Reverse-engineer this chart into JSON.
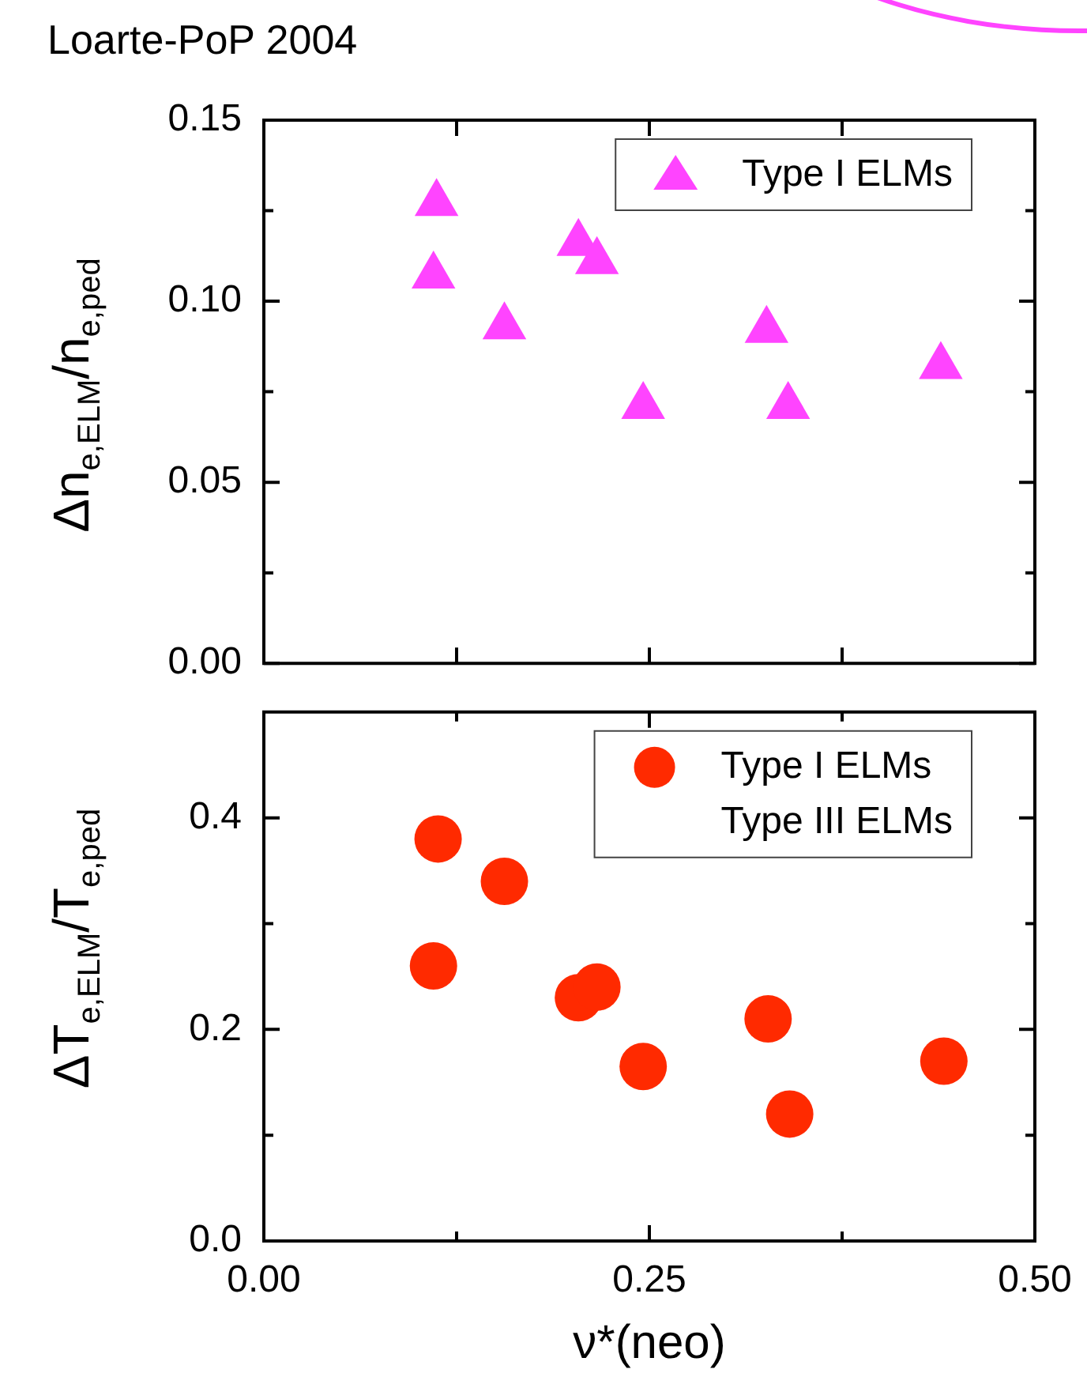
{
  "chart_data": [
    {
      "type": "scatter",
      "title": "Loarte-PoP 2004",
      "ylabel": "Δn$_{e,ELM}$/n$_{e,ped}$",
      "xlim": [
        0,
        0.5
      ],
      "xticks": [
        {
          "value": 0,
          "label": null
        },
        {
          "value": 0.125,
          "label": null
        },
        {
          "value": 0.25,
          "label": null
        },
        {
          "value": 0.375,
          "label": null
        },
        {
          "value": 0.5,
          "label": null
        }
      ],
      "ylim": [
        0,
        0.15
      ],
      "yticks": [
        {
          "value": 0,
          "label": "0.00"
        },
        {
          "value": 0.025,
          "label": null
        },
        {
          "value": 0.05,
          "label": "0.05"
        },
        {
          "value": 0.075,
          "label": null
        },
        {
          "value": 0.1,
          "label": "0.10"
        },
        {
          "value": 0.125,
          "label": null
        },
        {
          "value": 0.15,
          "label": "0.15"
        }
      ],
      "tick_labels": "y",
      "legend": "top right",
      "marker": "triangle",
      "series": [
        {
          "name": "Type I ELMs",
          "color": "#ff44ff",
          "x": [
            0.112,
            0.11,
            0.156,
            0.204,
            0.216,
            0.246,
            0.326,
            0.34,
            0.439
          ],
          "values": [
            0.127,
            0.107,
            0.093,
            0.116,
            0.111,
            0.071,
            0.092,
            0.071,
            0.082
          ]
        }
      ]
    },
    {
      "type": "scatter",
      "xlabel": "ν*(neo)",
      "ylabel": "ΔT$_{e,ELM}$/T$_{e,ped}$",
      "xlim": [
        0,
        0.5
      ],
      "xticks": [
        {
          "value": 0,
          "label": "0.00"
        },
        {
          "value": 0.125,
          "label": null
        },
        {
          "value": 0.25,
          "label": "0.25"
        },
        {
          "value": 0.375,
          "label": null
        },
        {
          "value": 0.5,
          "label": "0.50"
        }
      ],
      "ylim": [
        0,
        0.5
      ],
      "yticks": [
        {
          "value": 0,
          "label": "0.0"
        },
        {
          "value": 0.1,
          "label": null
        },
        {
          "value": 0.2,
          "label": "0.2"
        },
        {
          "value": 0.3,
          "label": null
        },
        {
          "value": 0.4,
          "label": "0.4"
        }
      ],
      "legend": "top right",
      "marker": "circle",
      "annotations": [
        "Type III ELMs"
      ],
      "series": [
        {
          "name": "Type I ELMs",
          "color": "#ff2a00",
          "x": [
            0.113,
            0.156,
            0.11,
            0.204,
            0.216,
            0.327,
            0.246,
            0.341,
            0.441
          ],
          "values": [
            0.38,
            0.34,
            0.26,
            0.23,
            0.24,
            0.21,
            0.165,
            0.12,
            0.17
          ]
        }
      ]
    }
  ]
}
